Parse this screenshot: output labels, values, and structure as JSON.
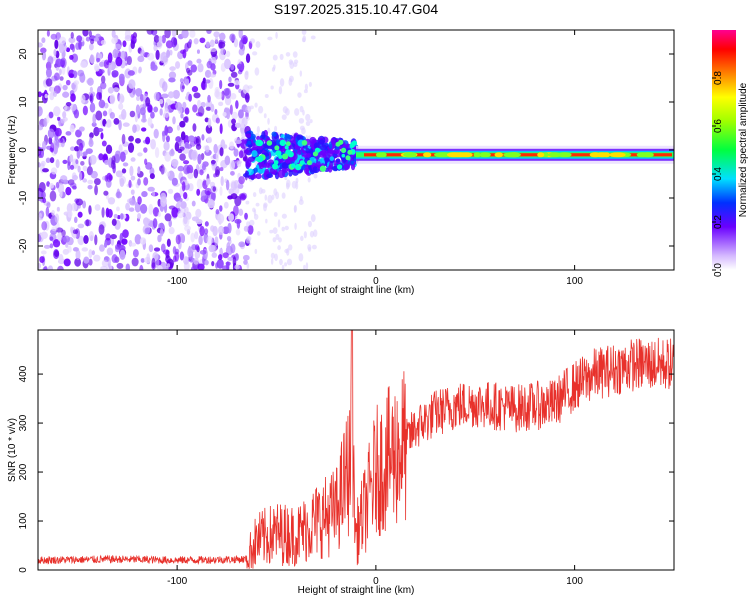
{
  "title": "S197.2025.315.10.47.G04",
  "chart_data": [
    {
      "type": "heatmap",
      "name": "spectrogram",
      "xlabel": "Height of straight line (km)",
      "ylabel": "Frequency (Hz)",
      "xlim": [
        -170,
        150
      ],
      "ylim": [
        -25,
        25
      ],
      "xticks": [
        -100,
        0,
        100
      ],
      "yticks": [
        -20,
        -10,
        0,
        10,
        20
      ],
      "grid": false,
      "colorbar": {
        "label": "Normalized spectral amplitude",
        "range": [
          0.0,
          1.0
        ],
        "ticks": [
          0.0,
          0.2,
          0.4,
          0.6,
          0.8
        ]
      },
      "regions": [
        {
          "x_from": -170,
          "x_to": -65,
          "freq_spread": 25,
          "amplitude": 0.08,
          "description": "noise"
        },
        {
          "x_from": -65,
          "x_to": -10,
          "freq_spread": 5,
          "amplitude": 0.25
        },
        {
          "x_from": -10,
          "x_to": 150,
          "freq_center": -1,
          "freq_width": 1.5,
          "amplitude": 0.9,
          "description": "carrier line"
        }
      ]
    },
    {
      "type": "line",
      "name": "snr",
      "xlabel": "Height of straight line (km)",
      "ylabel": "SNR (10 * v/v)",
      "xlim": [
        -170,
        150
      ],
      "ylim": [
        0,
        490
      ],
      "xticks": [
        -100,
        0,
        100
      ],
      "yticks": [
        0,
        100,
        200,
        300,
        400
      ],
      "color": "#e8312b",
      "series": [
        {
          "name": "SNR",
          "x": [
            -170,
            -130,
            -100,
            -65,
            -60,
            -50,
            -40,
            -30,
            -20,
            -12,
            -10,
            -5,
            0,
            10,
            15,
            20,
            25,
            30,
            40,
            50,
            60,
            70,
            80,
            90,
            95,
            100,
            110,
            120,
            130,
            140,
            150
          ],
          "values": [
            20,
            22,
            20,
            22,
            60,
            75,
            70,
            100,
            120,
            230,
            70,
            130,
            200,
            240,
            260,
            290,
            305,
            320,
            335,
            340,
            335,
            330,
            335,
            340,
            360,
            375,
            400,
            410,
            420,
            420,
            420
          ]
        }
      ]
    }
  ]
}
